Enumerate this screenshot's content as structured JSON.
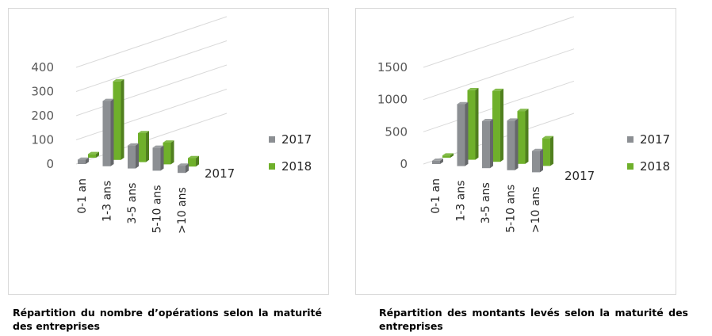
{
  "colors": {
    "s2017": "#8c8f93",
    "s2018": "#6fb02b",
    "grid": "#d9d9d9"
  },
  "chart_data": [
    {
      "type": "bar",
      "title": "",
      "categories": [
        "0-1 an",
        "1-3 ans",
        "3-5 ans",
        "5-10 ans",
        ">10 ans"
      ],
      "series": [
        {
          "name": "2017",
          "values": [
            18,
            270,
            95,
            95,
            30
          ]
        },
        {
          "name": "2018",
          "values": [
            15,
            325,
            120,
            90,
            35
          ]
        }
      ],
      "yticks": [
        0,
        100,
        200,
        300,
        400
      ],
      "ylim": [
        0,
        400
      ],
      "depth_label": "2017",
      "legend": "right",
      "grid": true
    },
    {
      "type": "bar",
      "title": "",
      "categories": [
        "0-1 an",
        "1-3 ans",
        "3-5 ans",
        "5-10 ans",
        ">10 ans"
      ],
      "series": [
        {
          "name": "2017",
          "values": [
            50,
            960,
            730,
            770,
            330
          ]
        },
        {
          "name": "2018",
          "values": [
            35,
            1080,
            1100,
            820,
            430
          ]
        }
      ],
      "yticks": [
        0,
        500,
        1000,
        1500
      ],
      "ylim": [
        0,
        1500
      ],
      "depth_label": "2017",
      "legend": "right",
      "grid": true
    }
  ],
  "legend_labels": [
    "2017",
    "2018"
  ],
  "captions": [
    "Répartition du nombre d’opérations selon la maturité des entreprises",
    "Répartition des montants levés selon la maturité des entreprises"
  ]
}
